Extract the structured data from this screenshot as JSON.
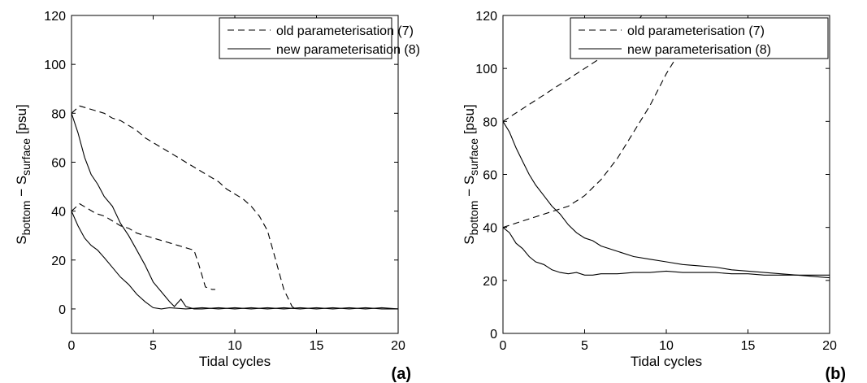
{
  "chart_data": [
    {
      "type": "line",
      "panel_label": "(a)",
      "xlabel": "Tidal cycles",
      "ylabel": {
        "base": "S",
        "sub1": "bottom",
        "dash": " − S",
        "sub2": "surface",
        "unit": " [psu]"
      },
      "xlim": [
        0,
        20
      ],
      "ylim": [
        -10,
        120
      ],
      "xticks": [
        "0",
        "5",
        "10",
        "15",
        "20"
      ],
      "yticks": [
        "0",
        "20",
        "40",
        "60",
        "80",
        "100",
        "120"
      ],
      "grid": false,
      "legend": {
        "position": "top-right",
        "entries": [
          {
            "label": "old parameterisation (7)",
            "style": "dashed"
          },
          {
            "label": "new parameterisation (8)",
            "style": "solid"
          }
        ]
      },
      "series": [
        {
          "name": "old parameterisation (7)",
          "style": "dashed",
          "x": [
            0,
            0.5,
            1,
            1.5,
            2,
            2.5,
            3,
            3.5,
            4,
            4.5,
            5,
            5.5,
            6,
            6.5,
            7,
            7.5,
            8,
            8.5,
            9,
            9.5,
            10,
            10.5,
            11,
            11.5,
            12,
            12.5,
            13,
            13.5,
            13.7
          ],
          "y": [
            80,
            83,
            82,
            81,
            80,
            78,
            77,
            75,
            73,
            70,
            68,
            66,
            64,
            62,
            60,
            58,
            56,
            54,
            52,
            49,
            47,
            45,
            42,
            38,
            32,
            20,
            8,
            1,
            0
          ]
        },
        {
          "name": "old parameterisation (7)",
          "style": "dashed",
          "x": [
            0,
            0.5,
            1,
            1.5,
            2,
            2.5,
            3,
            3.5,
            4,
            4.5,
            5,
            5.5,
            6,
            6.5,
            7,
            7.5,
            7.8,
            8.2,
            8.6,
            8.8
          ],
          "y": [
            40,
            43,
            41,
            39,
            38,
            36,
            34,
            33,
            31,
            30,
            29,
            28,
            27,
            26,
            25,
            24,
            18,
            9,
            8,
            8
          ]
        },
        {
          "name": "new parameterisation (8)",
          "style": "solid",
          "x": [
            0,
            0.4,
            0.8,
            1.2,
            1.6,
            2,
            2.5,
            3,
            3.5,
            4,
            4.5,
            5,
            5.5,
            6,
            6.3,
            6.7,
            7,
            7.5,
            8,
            9,
            10,
            11,
            12,
            13,
            14,
            15,
            16,
            17,
            18,
            19,
            20
          ],
          "y": [
            80,
            72,
            62,
            55,
            51,
            46,
            42,
            35,
            30,
            24,
            18,
            11,
            7,
            3,
            1,
            4,
            1,
            0,
            0,
            0.5,
            0,
            0.5,
            0,
            0.5,
            0,
            0.5,
            0,
            0.5,
            0,
            0.5,
            0
          ]
        },
        {
          "name": "new parameterisation (8)",
          "style": "solid",
          "x": [
            0,
            0.4,
            0.8,
            1.2,
            1.6,
            2,
            2.5,
            3,
            3.5,
            4,
            4.5,
            5,
            5.5,
            6,
            7,
            8,
            9,
            10,
            11,
            12,
            13,
            14,
            15,
            16,
            17,
            18,
            19,
            20
          ],
          "y": [
            40,
            34,
            29,
            26,
            24,
            21,
            17,
            13,
            10,
            6,
            3,
            0.5,
            0,
            0.5,
            0,
            0.5,
            0,
            0.5,
            0,
            0.5,
            0,
            0.5,
            0,
            0.5,
            0,
            0.5,
            0,
            0
          ]
        }
      ]
    },
    {
      "type": "line",
      "panel_label": "(b)",
      "xlabel": "Tidal cycles",
      "ylabel": {
        "base": "S",
        "sub1": "bottom",
        "dash": " − S",
        "sub2": "surface",
        "unit": " [psu]"
      },
      "xlim": [
        0,
        20
      ],
      "ylim": [
        0,
        120
      ],
      "xticks": [
        "0",
        "5",
        "10",
        "15",
        "20"
      ],
      "yticks": [
        "0",
        "20",
        "40",
        "60",
        "80",
        "100",
        "120"
      ],
      "grid": false,
      "legend": {
        "position": "top-right",
        "entries": [
          {
            "label": "old parameterisation (7)",
            "style": "dashed"
          },
          {
            "label": "new parameterisation (8)",
            "style": "solid"
          }
        ]
      },
      "series": [
        {
          "name": "old parameterisation (7)",
          "style": "dashed",
          "x": [
            0,
            0.5,
            1,
            1.5,
            2,
            2.5,
            3,
            3.5,
            4,
            4.5,
            5,
            5.5,
            6,
            6.5,
            7,
            7.5,
            8,
            8.5
          ],
          "y": [
            80,
            82,
            84,
            86,
            88,
            90,
            92,
            94,
            96,
            98,
            100,
            102,
            104,
            106,
            109,
            112,
            116,
            120
          ]
        },
        {
          "name": "old parameterisation (7)",
          "style": "dashed",
          "x": [
            0,
            0.5,
            1,
            1.5,
            2,
            2.5,
            3,
            3.5,
            4,
            4.5,
            5,
            5.5,
            6,
            6.5,
            7,
            7.5,
            8,
            8.5,
            9,
            9.5,
            10,
            10.5,
            11,
            11.5,
            12,
            12.3
          ],
          "y": [
            40,
            41,
            42,
            43,
            44,
            45,
            46,
            47,
            48,
            50,
            52,
            55,
            58,
            62,
            66,
            71,
            76,
            81,
            86,
            92,
            98,
            103,
            108,
            113,
            117,
            120
          ]
        },
        {
          "name": "new parameterisation (8)",
          "style": "solid",
          "x": [
            0,
            0.4,
            0.8,
            1.2,
            1.6,
            2,
            2.5,
            3,
            3.5,
            4,
            4.5,
            5,
            5.5,
            6,
            7,
            8,
            9,
            10,
            11,
            12,
            13,
            14,
            15,
            16,
            17,
            18,
            19,
            20
          ],
          "y": [
            80,
            76,
            70,
            65,
            60,
            56,
            52,
            48,
            45,
            41,
            38,
            36,
            35,
            33,
            31,
            29,
            28,
            27,
            26,
            25.5,
            25,
            24,
            23.5,
            23,
            22.5,
            22,
            21.5,
            21
          ]
        },
        {
          "name": "new parameterisation (8)",
          "style": "solid",
          "x": [
            0,
            0.4,
            0.8,
            1.2,
            1.6,
            2,
            2.5,
            3,
            3.5,
            4,
            4.5,
            5,
            5.5,
            6,
            7,
            8,
            9,
            10,
            11,
            12,
            13,
            14,
            15,
            16,
            17,
            18,
            19,
            20
          ],
          "y": [
            40,
            38,
            34,
            32,
            29,
            27,
            26,
            24,
            23,
            22.5,
            23,
            22,
            22,
            22.5,
            22.5,
            23,
            23,
            23.5,
            23,
            23,
            23,
            22.5,
            22.5,
            22,
            22,
            22,
            22,
            22
          ]
        }
      ]
    }
  ]
}
